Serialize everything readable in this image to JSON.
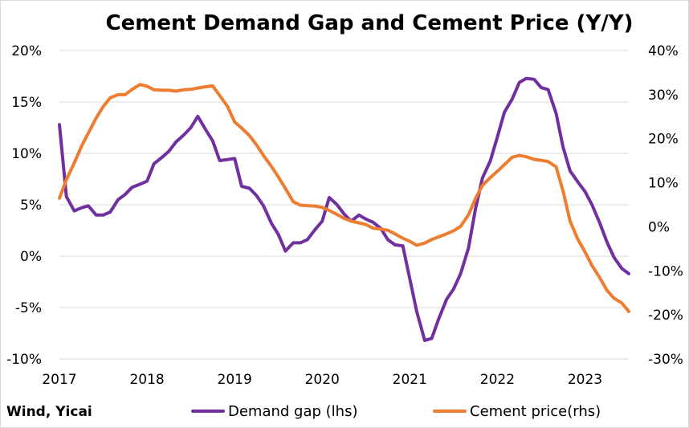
{
  "source": "Wind, Yicai",
  "chart_data": {
    "type": "line",
    "title": "Cement Demand Gap and Cement Price (Y/Y)",
    "x_ticks": [
      "2017",
      "2018",
      "2019",
      "2020",
      "2021",
      "2022",
      "2023"
    ],
    "xlim": [
      2017.0,
      2023.5
    ],
    "y_left": {
      "lim": [
        -10,
        20
      ],
      "ticks": [
        20,
        15,
        10,
        5,
        0,
        -5,
        -10
      ],
      "tick_labels": [
        "20%",
        "15%",
        "10%",
        "5%",
        "0%",
        "-5%",
        "-10%"
      ]
    },
    "y_right": {
      "lim": [
        -30,
        40
      ],
      "ticks": [
        40,
        30,
        20,
        10,
        0,
        -10,
        -20,
        -30
      ],
      "tick_labels": [
        "40%",
        "30%",
        "20%",
        "10%",
        "0%",
        "-10%",
        "-20%",
        "-30%"
      ]
    },
    "grid": true,
    "legend_position": "bottom",
    "series": [
      {
        "name": "Demand gap (lhs)",
        "axis": "left",
        "color": "#7030a0",
        "points": [
          [
            2017.0,
            12.8
          ],
          [
            2017.08,
            5.8
          ],
          [
            2017.17,
            4.4
          ],
          [
            2017.25,
            4.7
          ],
          [
            2017.33,
            4.9
          ],
          [
            2017.42,
            4.0
          ],
          [
            2017.5,
            4.0
          ],
          [
            2017.58,
            4.3
          ],
          [
            2017.67,
            5.5
          ],
          [
            2017.75,
            6.0
          ],
          [
            2017.83,
            6.7
          ],
          [
            2017.92,
            7.0
          ],
          [
            2018.0,
            7.3
          ],
          [
            2018.08,
            9.0
          ],
          [
            2018.17,
            9.6
          ],
          [
            2018.25,
            10.2
          ],
          [
            2018.33,
            11.1
          ],
          [
            2018.42,
            11.8
          ],
          [
            2018.5,
            12.5
          ],
          [
            2018.58,
            13.6
          ],
          [
            2018.67,
            12.3
          ],
          [
            2018.75,
            11.2
          ],
          [
            2018.83,
            9.3
          ],
          [
            2018.92,
            9.4
          ],
          [
            2019.0,
            9.5
          ],
          [
            2019.08,
            6.8
          ],
          [
            2019.17,
            6.6
          ],
          [
            2019.25,
            5.9
          ],
          [
            2019.33,
            4.9
          ],
          [
            2019.42,
            3.2
          ],
          [
            2019.5,
            2.1
          ],
          [
            2019.58,
            0.5
          ],
          [
            2019.67,
            1.3
          ],
          [
            2019.75,
            1.3
          ],
          [
            2019.83,
            1.6
          ],
          [
            2019.92,
            2.6
          ],
          [
            2020.0,
            3.4
          ],
          [
            2020.08,
            5.7
          ],
          [
            2020.17,
            5.0
          ],
          [
            2020.25,
            4.1
          ],
          [
            2020.33,
            3.4
          ],
          [
            2020.42,
            4.0
          ],
          [
            2020.5,
            3.6
          ],
          [
            2020.58,
            3.3
          ],
          [
            2020.67,
            2.7
          ],
          [
            2020.75,
            1.6
          ],
          [
            2020.83,
            1.1
          ],
          [
            2020.92,
            1.0
          ],
          [
            2021.0,
            -2.2
          ],
          [
            2021.08,
            -5.4
          ],
          [
            2021.17,
            -8.2
          ],
          [
            2021.25,
            -8.0
          ],
          [
            2021.33,
            -6.1
          ],
          [
            2021.42,
            -4.2
          ],
          [
            2021.5,
            -3.2
          ],
          [
            2021.58,
            -1.7
          ],
          [
            2021.67,
            0.8
          ],
          [
            2021.75,
            4.6
          ],
          [
            2021.83,
            7.6
          ],
          [
            2021.92,
            9.3
          ],
          [
            2022.0,
            11.6
          ],
          [
            2022.08,
            14.0
          ],
          [
            2022.17,
            15.3
          ],
          [
            2022.25,
            16.9
          ],
          [
            2022.33,
            17.3
          ],
          [
            2022.42,
            17.2
          ],
          [
            2022.5,
            16.4
          ],
          [
            2022.58,
            16.2
          ],
          [
            2022.67,
            13.9
          ],
          [
            2022.75,
            10.6
          ],
          [
            2022.83,
            8.3
          ],
          [
            2022.92,
            7.2
          ],
          [
            2023.0,
            6.3
          ],
          [
            2023.08,
            5.0
          ],
          [
            2023.17,
            3.2
          ],
          [
            2023.25,
            1.4
          ],
          [
            2023.33,
            -0.1
          ],
          [
            2023.42,
            -1.2
          ],
          [
            2023.5,
            -1.7
          ]
        ]
      },
      {
        "name": "Cement price(rhs)",
        "axis": "right",
        "color": "#ed7d31",
        "points": [
          [
            2017.0,
            6.5
          ],
          [
            2017.08,
            10.7
          ],
          [
            2017.17,
            14.5
          ],
          [
            2017.25,
            18.2
          ],
          [
            2017.33,
            21.3
          ],
          [
            2017.42,
            24.7
          ],
          [
            2017.5,
            27.3
          ],
          [
            2017.58,
            29.3
          ],
          [
            2017.67,
            30.0
          ],
          [
            2017.75,
            30.0
          ],
          [
            2017.83,
            31.2
          ],
          [
            2017.92,
            32.3
          ],
          [
            2018.0,
            31.9
          ],
          [
            2018.08,
            31.1
          ],
          [
            2018.17,
            31.0
          ],
          [
            2018.25,
            31.0
          ],
          [
            2018.33,
            30.8
          ],
          [
            2018.42,
            31.1
          ],
          [
            2018.5,
            31.2
          ],
          [
            2018.58,
            31.5
          ],
          [
            2018.67,
            31.8
          ],
          [
            2018.75,
            32.0
          ],
          [
            2018.83,
            29.8
          ],
          [
            2018.92,
            27.3
          ],
          [
            2019.0,
            23.8
          ],
          [
            2019.08,
            22.4
          ],
          [
            2019.17,
            20.7
          ],
          [
            2019.25,
            18.6
          ],
          [
            2019.33,
            16.2
          ],
          [
            2019.42,
            13.7
          ],
          [
            2019.5,
            11.3
          ],
          [
            2019.58,
            8.7
          ],
          [
            2019.67,
            5.7
          ],
          [
            2019.75,
            4.9
          ],
          [
            2019.83,
            4.8
          ],
          [
            2019.92,
            4.7
          ],
          [
            2020.0,
            4.4
          ],
          [
            2020.08,
            3.7
          ],
          [
            2020.17,
            2.8
          ],
          [
            2020.25,
            1.9
          ],
          [
            2020.33,
            1.3
          ],
          [
            2020.42,
            0.9
          ],
          [
            2020.5,
            0.5
          ],
          [
            2020.58,
            -0.3
          ],
          [
            2020.67,
            -0.5
          ],
          [
            2020.75,
            -0.8
          ],
          [
            2020.83,
            -1.6
          ],
          [
            2020.92,
            -2.6
          ],
          [
            2021.0,
            -3.3
          ],
          [
            2021.08,
            -4.2
          ],
          [
            2021.17,
            -3.7
          ],
          [
            2021.25,
            -2.9
          ],
          [
            2021.33,
            -2.3
          ],
          [
            2021.42,
            -1.6
          ],
          [
            2021.5,
            -0.9
          ],
          [
            2021.58,
            0.1
          ],
          [
            2021.67,
            2.7
          ],
          [
            2021.75,
            6.4
          ],
          [
            2021.83,
            9.4
          ],
          [
            2021.92,
            11.2
          ],
          [
            2022.0,
            12.6
          ],
          [
            2022.08,
            14.1
          ],
          [
            2022.17,
            15.8
          ],
          [
            2022.25,
            16.2
          ],
          [
            2022.33,
            15.9
          ],
          [
            2022.42,
            15.3
          ],
          [
            2022.5,
            15.1
          ],
          [
            2022.58,
            14.8
          ],
          [
            2022.67,
            13.6
          ],
          [
            2022.75,
            8.1
          ],
          [
            2022.83,
            1.3
          ],
          [
            2022.92,
            -2.9
          ],
          [
            2023.0,
            -5.7
          ],
          [
            2023.08,
            -8.8
          ],
          [
            2023.17,
            -11.6
          ],
          [
            2023.25,
            -14.4
          ],
          [
            2023.33,
            -16.2
          ],
          [
            2023.42,
            -17.3
          ],
          [
            2023.5,
            -19.2
          ]
        ]
      }
    ]
  }
}
